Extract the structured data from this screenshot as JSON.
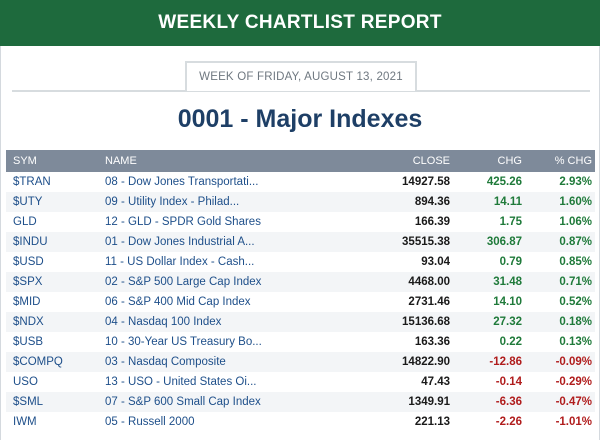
{
  "header": {
    "title": "WEEKLY CHARTLIST REPORT",
    "week_label": "WEEK OF FRIDAY, AUGUST 13, 2021",
    "page_title": "0001 - Major Indexes"
  },
  "table": {
    "columns": [
      "SYM",
      "NAME",
      "CLOSE",
      "CHG",
      "% CHG"
    ],
    "colors": {
      "positive": "#1f7a3a",
      "negative": "#b01c1c",
      "header_bg": "#7e8a9a",
      "banner_bg": "#1e6a3d"
    },
    "rows": [
      {
        "sym": "$TRAN",
        "name": "08 - Dow Jones Transportati...",
        "close": "14927.58",
        "chg": "425.26",
        "pct": "2.93%",
        "dir": "pos"
      },
      {
        "sym": "$UTY",
        "name": "09 - Utility Index - Philad...",
        "close": "894.36",
        "chg": "14.11",
        "pct": "1.60%",
        "dir": "pos"
      },
      {
        "sym": "GLD",
        "name": "12 - GLD - SPDR Gold Shares",
        "close": "166.39",
        "chg": "1.75",
        "pct": "1.06%",
        "dir": "pos"
      },
      {
        "sym": "$INDU",
        "name": "01 - Dow Jones Industrial A...",
        "close": "35515.38",
        "chg": "306.87",
        "pct": "0.87%",
        "dir": "pos"
      },
      {
        "sym": "$USD",
        "name": "11 - US Dollar Index - Cash...",
        "close": "93.04",
        "chg": "0.79",
        "pct": "0.85%",
        "dir": "pos"
      },
      {
        "sym": "$SPX",
        "name": "02 - S&P 500 Large Cap Index",
        "close": "4468.00",
        "chg": "31.48",
        "pct": "0.71%",
        "dir": "pos"
      },
      {
        "sym": "$MID",
        "name": "06 - S&P 400 Mid Cap Index",
        "close": "2731.46",
        "chg": "14.10",
        "pct": "0.52%",
        "dir": "pos"
      },
      {
        "sym": "$NDX",
        "name": "04 - Nasdaq 100 Index",
        "close": "15136.68",
        "chg": "27.32",
        "pct": "0.18%",
        "dir": "pos"
      },
      {
        "sym": "$USB",
        "name": "10 - 30-Year US Treasury Bo...",
        "close": "163.36",
        "chg": "0.22",
        "pct": "0.13%",
        "dir": "pos"
      },
      {
        "sym": "$COMPQ",
        "name": "03 - Nasdaq Composite",
        "close": "14822.90",
        "chg": "-12.86",
        "pct": "-0.09%",
        "dir": "neg"
      },
      {
        "sym": "USO",
        "name": "13 - USO - United States Oi...",
        "close": "47.43",
        "chg": "-0.14",
        "pct": "-0.29%",
        "dir": "neg"
      },
      {
        "sym": "$SML",
        "name": "07 - S&P 600 Small Cap Index",
        "close": "1349.91",
        "chg": "-6.36",
        "pct": "-0.47%",
        "dir": "neg"
      },
      {
        "sym": "IWM",
        "name": "05 - Russell 2000",
        "close": "221.13",
        "chg": "-2.26",
        "pct": "-1.01%",
        "dir": "neg"
      }
    ]
  }
}
